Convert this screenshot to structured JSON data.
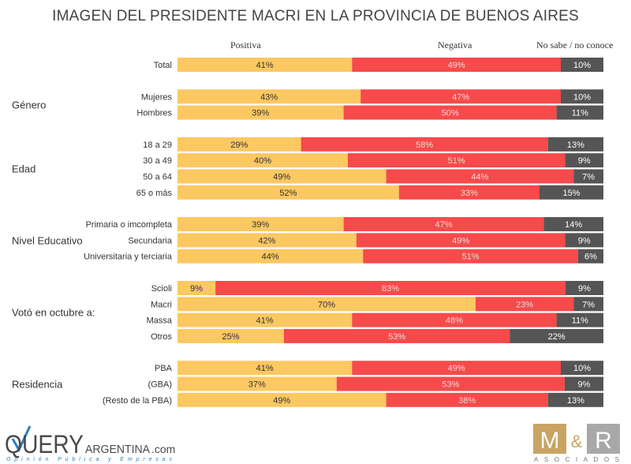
{
  "chart_data": {
    "type": "bar",
    "orientation": "horizontal-stacked-100",
    "title": "IMAGEN DEL PRESIDENTE MACRI EN LA PROVINCIA DE BUENOS AIRES",
    "legend": [
      "Positiva",
      "Negativa",
      "No sabe / no conoce"
    ],
    "legend_position": "top",
    "colors": {
      "Positiva": "#FCC862",
      "Negativa": "#F64A4B",
      "No sabe / no conoce": "#555555"
    },
    "label_colors": {
      "Positiva": "#333333",
      "Negativa": "#FFD6D6",
      "No sabe / no conoce": "#FFFFFF"
    },
    "xlim": [
      0,
      100
    ],
    "groups": [
      {
        "name": "",
        "rows": [
          {
            "label": "Total",
            "values": [
              41,
              49,
              10
            ]
          }
        ]
      },
      {
        "name": "Género",
        "rows": [
          {
            "label": "Mujeres",
            "values": [
              43,
              47,
              10
            ]
          },
          {
            "label": "Hombres",
            "values": [
              39,
              50,
              11
            ]
          }
        ]
      },
      {
        "name": "Edad",
        "rows": [
          {
            "label": "18 a 29",
            "values": [
              29,
              58,
              13
            ]
          },
          {
            "label": "30 a 49",
            "values": [
              40,
              51,
              9
            ]
          },
          {
            "label": "50 a 64",
            "values": [
              49,
              44,
              7
            ]
          },
          {
            "label": "65 o más",
            "values": [
              52,
              33,
              15
            ]
          }
        ]
      },
      {
        "name": "Nivel Educativo",
        "rows": [
          {
            "label": "Primaria o imcompleta",
            "values": [
              39,
              47,
              14
            ]
          },
          {
            "label": "Secundaria",
            "values": [
              42,
              49,
              9
            ]
          },
          {
            "label": "Universitaria y terciaria",
            "values": [
              44,
              51,
              6
            ]
          }
        ]
      },
      {
        "name": "Votó en octubre a:",
        "rows": [
          {
            "label": "Scioli",
            "values": [
              9,
              83,
              9
            ]
          },
          {
            "label": "Macri",
            "values": [
              70,
              23,
              7
            ]
          },
          {
            "label": "Massa",
            "values": [
              41,
              48,
              11
            ]
          },
          {
            "label": "Otros",
            "values": [
              25,
              53,
              22
            ]
          }
        ]
      },
      {
        "name": "Residencia",
        "rows": [
          {
            "label": "PBA",
            "values": [
              41,
              49,
              10
            ]
          },
          {
            "label": "(GBA)",
            "values": [
              37,
              53,
              9
            ]
          },
          {
            "label": "(Resto de la PBA)",
            "values": [
              49,
              38,
              13
            ]
          }
        ]
      }
    ]
  },
  "logos": {
    "query": {
      "main": "QUERY",
      "suffix": "ARGENTINA",
      "domain": ".com",
      "tagline": "Opinión   Pública   y   Empresas"
    },
    "mr": {
      "left": "M",
      "amp": "&",
      "right": "R",
      "tagline": "ASOCIADOS"
    }
  }
}
